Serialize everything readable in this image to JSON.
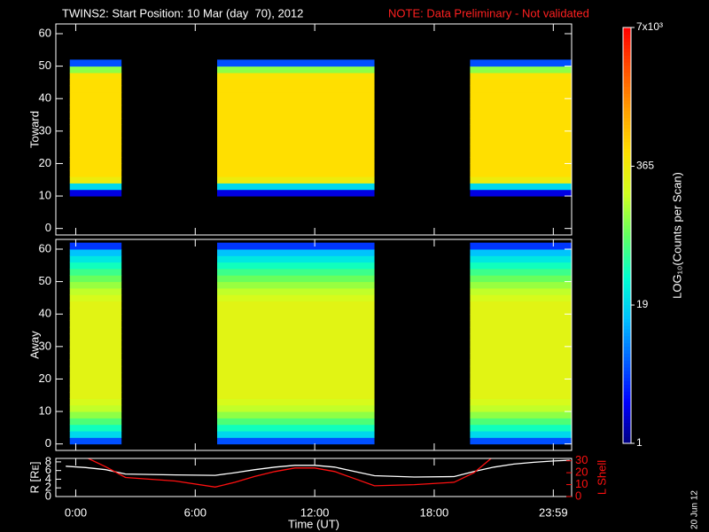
{
  "title": "TWINS2: Start Position: 10 Mar (day  70), 2012",
  "note": "NOTE: Data Preliminary - Not validated",
  "date_stamp": "20 Jun 12",
  "colorbar": {
    "label": "LOG₁₀(Counts per Scan)",
    "log": true,
    "clim": [
      1,
      7000
    ],
    "ticks": [
      {
        "value": 7000,
        "label": "7x10³"
      },
      365,
      19,
      1
    ],
    "colormap": [
      "#000080",
      "#0000ff",
      "#0060ff",
      "#00c0ff",
      "#00ffd0",
      "#60ff60",
      "#d0ff20",
      "#ffe000",
      "#ffa000",
      "#ff5000",
      "#ff0000"
    ]
  },
  "chart_data": [
    {
      "type": "heatmap",
      "ylabel": "Toward",
      "ylim": [
        -2,
        63
      ],
      "yticks": [
        0,
        10,
        20,
        30,
        40,
        50,
        60
      ],
      "segments": [
        {
          "start": -0.3,
          "end": 2.3
        },
        {
          "start": 7.1,
          "end": 15.0
        },
        {
          "start": 19.8,
          "end": 24.9
        }
      ],
      "bins": [
        0,
        2,
        4,
        6,
        8,
        10,
        12,
        14,
        16,
        18,
        20,
        22,
        24,
        26,
        28,
        30,
        32,
        34,
        36,
        38,
        40,
        42,
        44,
        46,
        48,
        50,
        52,
        54,
        56,
        58,
        60,
        62
      ],
      "counts": [
        null,
        null,
        null,
        null,
        null,
        2,
        20,
        350,
        500,
        500,
        500,
        500,
        500,
        500,
        500,
        500,
        500,
        500,
        500,
        500,
        500,
        500,
        500,
        450,
        120,
        5,
        null,
        null,
        null,
        null,
        null
      ]
    },
    {
      "type": "heatmap",
      "ylabel": "Away",
      "ylim": [
        -2,
        63
      ],
      "yticks": [
        0,
        10,
        20,
        30,
        40,
        50,
        60
      ],
      "segments": [
        {
          "start": -0.3,
          "end": 2.3
        },
        {
          "start": 7.1,
          "end": 15.0
        },
        {
          "start": 19.8,
          "end": 24.9
        }
      ],
      "bins": [
        0,
        2,
        4,
        6,
        8,
        10,
        12,
        14,
        16,
        18,
        20,
        22,
        24,
        26,
        28,
        30,
        32,
        34,
        36,
        38,
        40,
        42,
        44,
        46,
        48,
        50,
        52,
        54,
        56,
        58,
        60,
        62
      ],
      "counts": [
        5,
        20,
        40,
        70,
        120,
        180,
        230,
        280,
        280,
        280,
        280,
        280,
        280,
        280,
        280,
        280,
        280,
        280,
        280,
        280,
        280,
        280,
        230,
        180,
        130,
        90,
        60,
        40,
        25,
        15,
        4
      ]
    },
    {
      "type": "line",
      "xlabel": "Time (UT)",
      "ylabel": "R [Rᴇ]",
      "y2label": "L Shell",
      "xlim": [
        -1,
        24.9
      ],
      "xticks": [
        {
          "value": 0,
          "label": "0:00"
        },
        {
          "value": 6,
          "label": "6:00"
        },
        {
          "value": 12,
          "label": "12:00"
        },
        {
          "value": 18,
          "label": "18:00"
        },
        {
          "value": 23.98,
          "label": "23:59"
        }
      ],
      "ylim": [
        0,
        8.8
      ],
      "yticks": [
        0,
        2,
        4,
        6,
        8
      ],
      "y2lim": [
        0,
        32
      ],
      "y2ticks": [
        0,
        10,
        20,
        30
      ],
      "series": [
        {
          "color": "#ffffff",
          "axis": "y",
          "x": [
            -0.5,
            0.5,
            1.5,
            2.5,
            5,
            7,
            8,
            9,
            10,
            11,
            12,
            13,
            14,
            15,
            17,
            19,
            20,
            21,
            22,
            23,
            24,
            24.8
          ],
          "values": [
            7.0,
            6.7,
            6.2,
            5.2,
            5.0,
            4.9,
            5.5,
            6.2,
            6.8,
            7.2,
            7.2,
            6.8,
            5.8,
            4.8,
            4.5,
            4.6,
            5.8,
            6.8,
            7.5,
            7.9,
            8.2,
            8.4
          ]
        },
        {
          "color": "#ff1010",
          "axis": "y2",
          "x": [
            0.5,
            1.5,
            2.5,
            5,
            7,
            8,
            9,
            10,
            11,
            12,
            13,
            14,
            15,
            17,
            19,
            20,
            21
          ],
          "values": [
            33,
            25,
            16,
            13,
            8,
            12,
            17,
            21,
            24,
            24,
            21,
            15,
            9,
            10,
            12,
            20,
            34
          ]
        }
      ]
    }
  ]
}
